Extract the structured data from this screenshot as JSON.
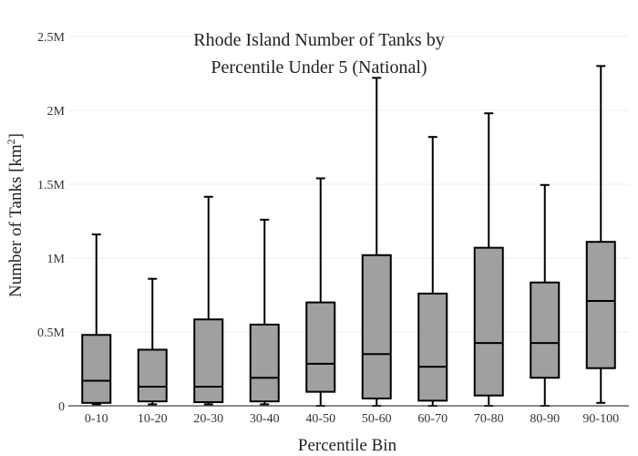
{
  "chart_data": {
    "type": "box",
    "title_lines": [
      "Rhode Island Number of Tanks by",
      "Percentile Under 5 (National)"
    ],
    "xlabel": "Percentile Bin",
    "ylabel": "Number of Tanks  [km",
    "ylabel_sup": "2",
    "ylabel_suffix": "]",
    "ylim": [
      0,
      2500000
    ],
    "yticks": [
      0,
      500000,
      1000000,
      1500000,
      2000000,
      2500000
    ],
    "ytick_labels": [
      "0",
      "0.5M",
      "1M",
      "1.5M",
      "2M",
      "2.5M"
    ],
    "grid": true,
    "box_color": "#a0a0a0",
    "line_color": "#000000",
    "categories": [
      "0-10",
      "10-20",
      "20-30",
      "30-40",
      "40-50",
      "50-60",
      "60-70",
      "70-80",
      "80-90",
      "90-100"
    ],
    "boxes": [
      {
        "min": 10000,
        "q1": 20000,
        "median": 170000,
        "q3": 480000,
        "max": 1160000
      },
      {
        "min": 10000,
        "q1": 30000,
        "median": 130000,
        "q3": 380000,
        "max": 860000
      },
      {
        "min": 10000,
        "q1": 25000,
        "median": 130000,
        "q3": 585000,
        "max": 1415000
      },
      {
        "min": 10000,
        "q1": 30000,
        "median": 190000,
        "q3": 550000,
        "max": 1260000
      },
      {
        "min": 0,
        "q1": 95000,
        "median": 285000,
        "q3": 700000,
        "max": 1540000
      },
      {
        "min": 0,
        "q1": 50000,
        "median": 350000,
        "q3": 1020000,
        "max": 2220000
      },
      {
        "min": 0,
        "q1": 35000,
        "median": 265000,
        "q3": 760000,
        "max": 1820000
      },
      {
        "min": 0,
        "q1": 70000,
        "median": 425000,
        "q3": 1070000,
        "max": 1980000
      },
      {
        "min": 0,
        "q1": 190000,
        "median": 425000,
        "q3": 835000,
        "max": 1495000
      },
      {
        "min": 20000,
        "q1": 255000,
        "median": 710000,
        "q3": 1110000,
        "max": 2300000
      }
    ]
  }
}
